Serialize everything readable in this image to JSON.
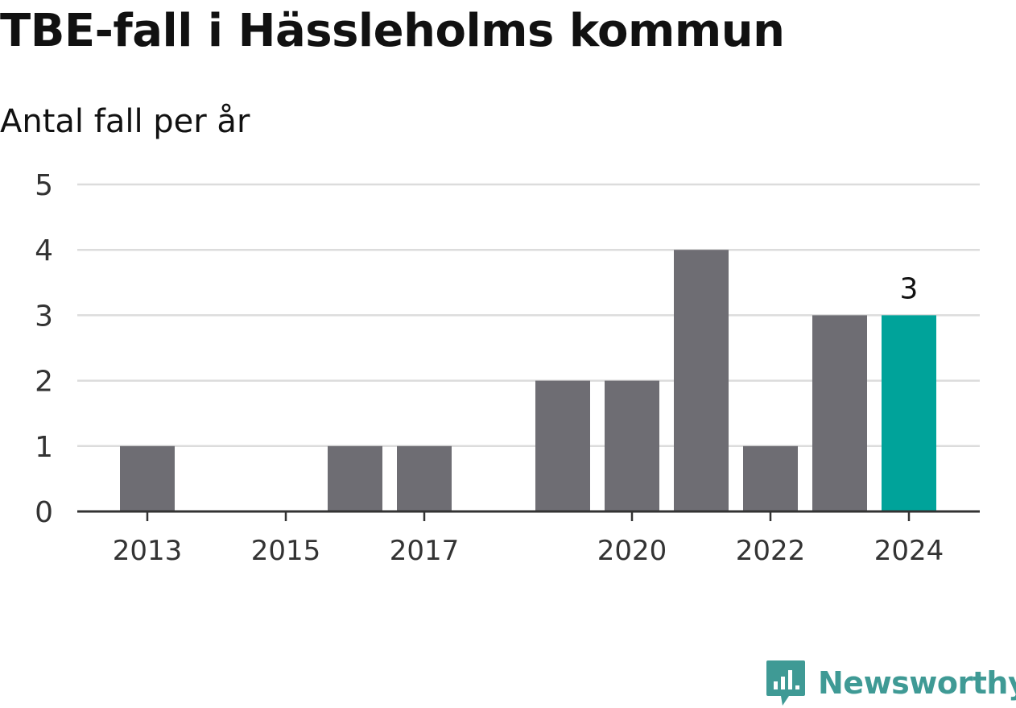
{
  "header": {
    "title": "TBE-fall i Hässleholms kommun",
    "subtitle": "Antal fall per år"
  },
  "chart_data": {
    "type": "bar",
    "title": "TBE-fall i Hässleholms kommun",
    "subtitle": "Antal fall per år",
    "xlabel": "",
    "ylabel": "",
    "categories": [
      "2013",
      "2014",
      "2015",
      "2016",
      "2017",
      "2018",
      "2019",
      "2020",
      "2021",
      "2022",
      "2023",
      "2024"
    ],
    "values": [
      1,
      0,
      0,
      1,
      1,
      0,
      2,
      2,
      4,
      1,
      3,
      3
    ],
    "x_tick_labels": [
      "2013",
      "2015",
      "2017",
      "2020",
      "2022",
      "2024"
    ],
    "y_ticks": [
      0,
      1,
      2,
      3,
      4,
      5
    ],
    "ylim": [
      0,
      5
    ],
    "grid": true,
    "highlight": {
      "category": "2024",
      "label": "3"
    },
    "colors": {
      "bar": "#6e6d73",
      "highlight": "#00a39a",
      "grid": "#dcdcdc",
      "axis": "#333333"
    }
  },
  "brand": {
    "name": "Newsworthy",
    "icon": "newsworthy-logo-icon",
    "color": "#3f9a95"
  }
}
